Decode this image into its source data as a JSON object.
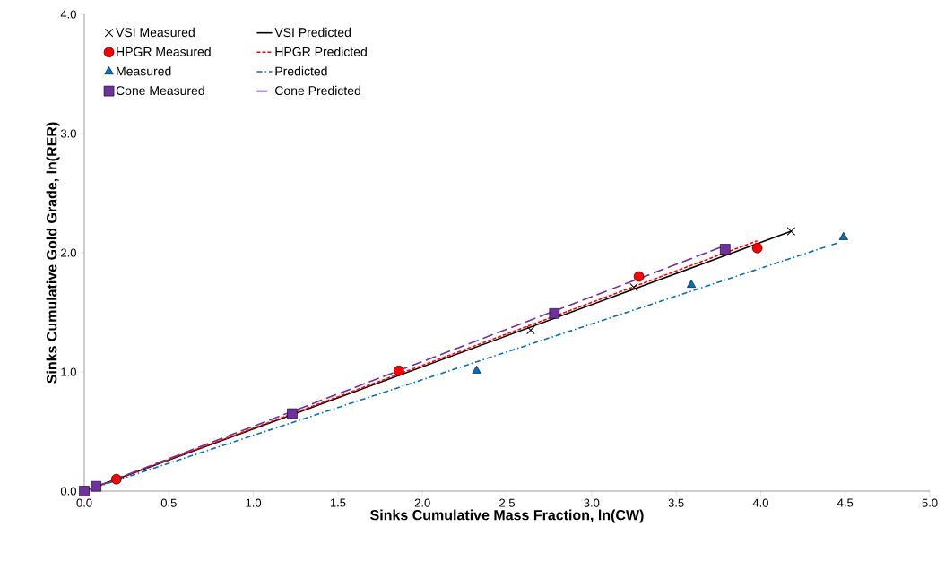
{
  "chart_data": {
    "type": "scatter",
    "xlabel": "Sinks Cumulative Mass Fraction, ln(CW)",
    "ylabel": "Sinks Cumulative Gold Grade, ln(RER)",
    "xlim": [
      0,
      5
    ],
    "ylim": [
      0,
      4
    ],
    "xticks": [
      {
        "value": 0,
        "label": "0.0"
      },
      0.5,
      {
        "value": 1,
        "label": "1.0"
      },
      1.5,
      {
        "value": 2,
        "label": "2.0"
      },
      2.5,
      {
        "value": 3,
        "label": "3.0"
      },
      3.5,
      {
        "value": 4,
        "label": "4.0"
      },
      4.5,
      {
        "value": 5,
        "label": "5.0"
      }
    ],
    "yticks": [
      {
        "value": 0,
        "label": "0.0"
      },
      {
        "value": 1,
        "label": "1.0"
      },
      {
        "value": 2,
        "label": "2.0"
      },
      {
        "value": 3,
        "label": "3.0"
      },
      {
        "value": 4,
        "label": "4.0"
      }
    ],
    "grid": false,
    "legend": "top left",
    "series": [
      {
        "name": "VSI Measured",
        "marker": "cross",
        "color": "#000000",
        "x": [
          2.64,
          3.25,
          4.18
        ],
        "values": [
          1.35,
          1.71,
          2.18
        ]
      },
      {
        "name": "VSI Predicted",
        "type": "line",
        "marker": "none",
        "line_style": "solid",
        "color": "#000000",
        "x": [
          0,
          4.18
        ],
        "values": [
          0,
          2.18
        ]
      },
      {
        "name": "HPGR Measured",
        "marker": "circle",
        "color": "#ff0000",
        "x": [
          0.19,
          1.86,
          3.28,
          3.98
        ],
        "values": [
          0.1,
          1.01,
          1.8,
          2.04
        ]
      },
      {
        "name": "HPGR Predicted",
        "type": "line",
        "marker": "none",
        "line_style": "dashed",
        "color": "#ff0000",
        "x": [
          0,
          3.98
        ],
        "values": [
          0,
          2.1
        ]
      },
      {
        "name": "Measured",
        "marker": "triangle",
        "color": "#0070c0",
        "x": [
          2.32,
          3.59,
          4.49
        ],
        "values": [
          1.01,
          1.73,
          2.13
        ]
      },
      {
        "name": "Predicted",
        "type": "line",
        "marker": "none",
        "line_style": "dashdotted",
        "color": "#0070c0",
        "x": [
          0,
          4.45
        ],
        "values": [
          0,
          2.08
        ]
      },
      {
        "name": "Cone Measured",
        "marker": "square",
        "color": "#7030a0",
        "x": [
          0,
          0.07,
          1.23,
          2.78,
          3.79
        ],
        "values": [
          0,
          0.04,
          0.65,
          1.49,
          2.03
        ]
      },
      {
        "name": "Cone Predicted",
        "type": "line",
        "marker": "none",
        "line_style": "long dashed",
        "color": "#7030a0",
        "x": [
          0,
          3.79
        ],
        "values": [
          0,
          2.06
        ]
      }
    ]
  }
}
